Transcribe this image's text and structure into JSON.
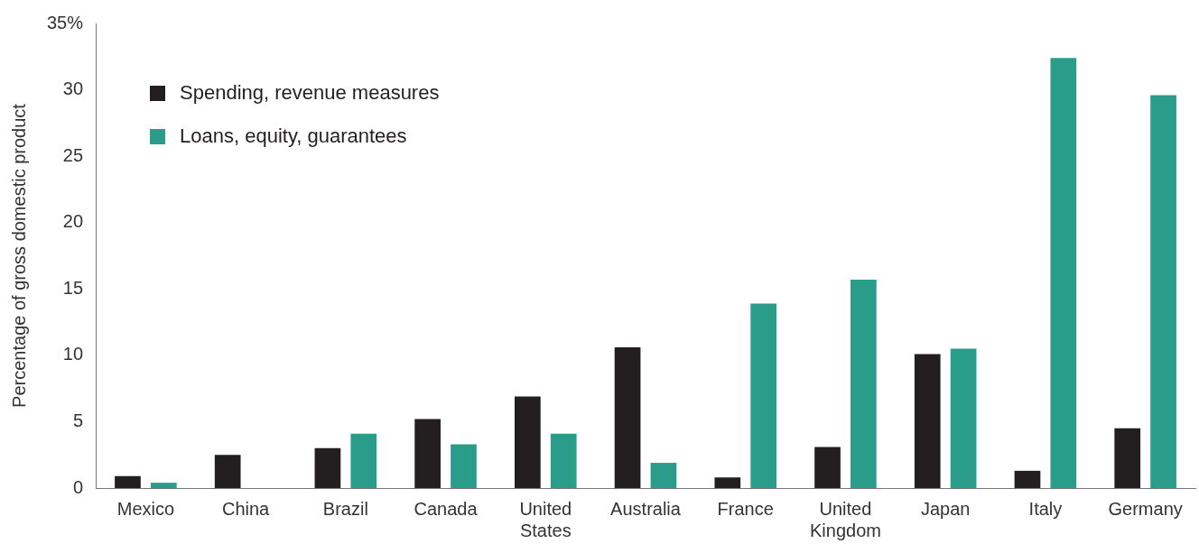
{
  "chart_data": {
    "type": "bar",
    "ylabel": "Percentage of gross domestic product",
    "categories": [
      "Mexico",
      "China",
      "Brazil",
      "Canada",
      "United States",
      "Australia",
      "France",
      "United Kingdom",
      "Japan",
      "Italy",
      "Germany"
    ],
    "series": [
      {
        "name": "Spending, revenue measures",
        "color": "#231f20",
        "values": [
          0.9,
          2.5,
          3.0,
          5.2,
          6.9,
          10.6,
          0.8,
          3.1,
          10.1,
          1.3,
          4.5
        ]
      },
      {
        "name": "Loans, equity, guarantees",
        "color": "#2a9d8a",
        "values": [
          0.4,
          null,
          4.1,
          3.3,
          4.1,
          1.9,
          13.9,
          15.7,
          10.5,
          32.4,
          29.6
        ]
      }
    ],
    "ylim": [
      0,
      35
    ],
    "yticks": [
      0,
      5,
      10,
      15,
      20,
      25,
      30,
      {
        "value": 35,
        "label": "35%"
      }
    ],
    "grid": false,
    "legend": "top left"
  }
}
